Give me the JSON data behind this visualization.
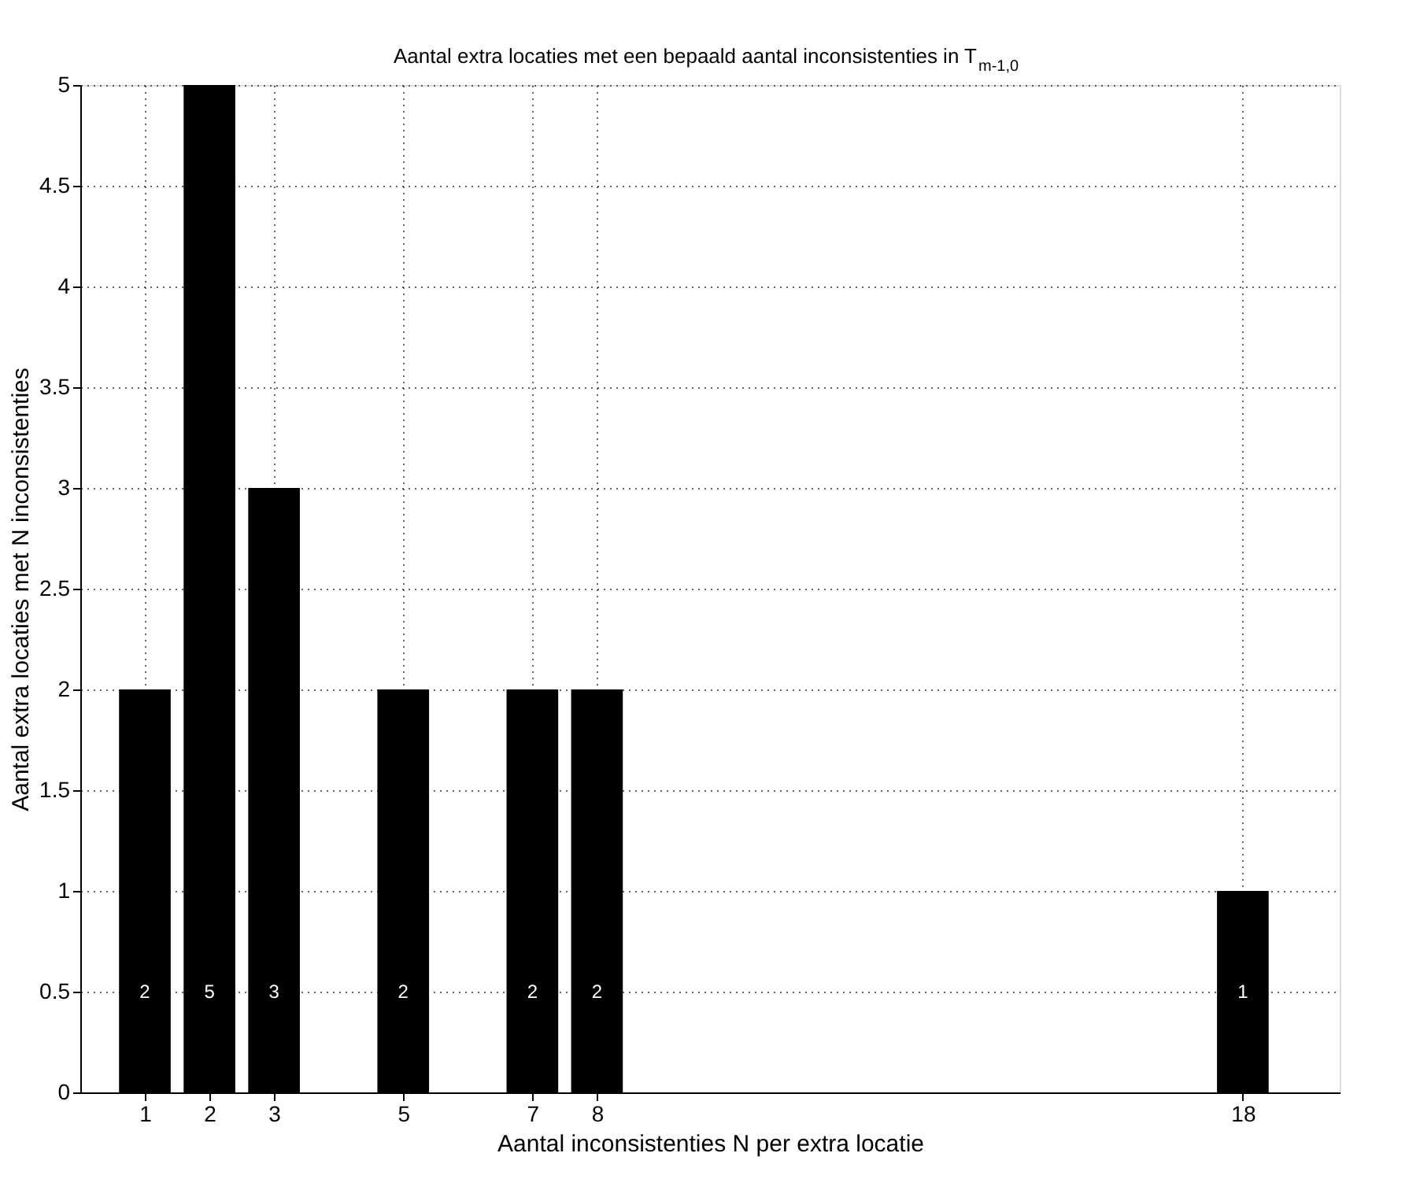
{
  "chart_data": {
    "type": "bar",
    "title": "Aantal extra locaties met een bepaald aantal inconsistenties in T$_{m-1,0}$",
    "xlabel": "Aantal inconsistenties N per extra locatie",
    "ylabel": "Aantal extra locaties met N inconsistenties",
    "x": [
      1,
      2,
      3,
      5,
      7,
      8,
      18
    ],
    "values": [
      2,
      5,
      3,
      2,
      2,
      2,
      1
    ],
    "color": "#000000",
    "data_labels": true,
    "xlim": [
      0,
      19.5
    ],
    "xticks": [
      1,
      2,
      3,
      5,
      7,
      8,
      18
    ],
    "ylim": [
      0,
      5
    ],
    "yticks": [
      0,
      0.5,
      1,
      1.5,
      2,
      2.5,
      3,
      3.5,
      4,
      4.5,
      5
    ],
    "grid": true
  }
}
